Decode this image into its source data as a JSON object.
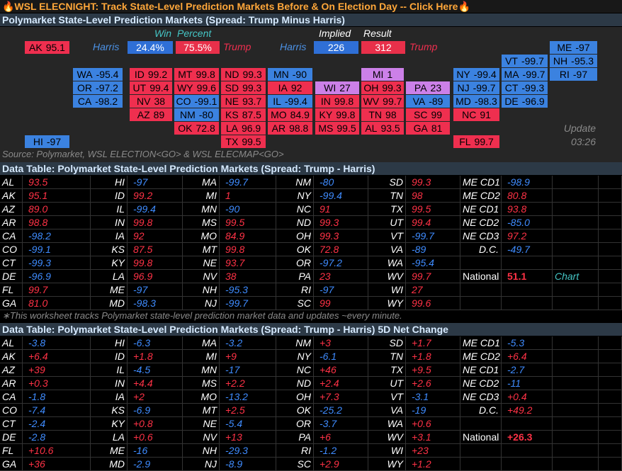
{
  "banner": "🔥WSL ELECNIGHT: Track State-Level Prediction Markets Before & On Election Day -- Click Here🔥",
  "map": {
    "title": "Polymarket State-Level Prediction Markets (Spread: Trump Minus Harris)",
    "win_percent": {
      "heading": [
        "Win",
        "Percent"
      ],
      "harris_label": "Harris",
      "harris": "24.4%",
      "trump": "75.5%",
      "trump_label": "Trump"
    },
    "implied_result": {
      "heading": [
        "Implied",
        "Result"
      ],
      "harris_label": "Harris",
      "harris": "226",
      "trump": "312",
      "trump_label": "Trump"
    },
    "tiles": [
      {
        "state": "AK",
        "value": "95.1"
      },
      {
        "state": "ME",
        "value": "-97"
      },
      {
        "state": "VT",
        "value": "-99.7"
      },
      {
        "state": "NH",
        "value": "-95.3"
      },
      {
        "state": "WA",
        "value": "-95.4"
      },
      {
        "state": "ID",
        "value": "99.2"
      },
      {
        "state": "MT",
        "value": "99.8"
      },
      {
        "state": "ND",
        "value": "99.3"
      },
      {
        "state": "MN",
        "value": "-90"
      },
      {
        "state": "MI",
        "value": "1"
      },
      {
        "state": "NY",
        "value": "-99.4"
      },
      {
        "state": "MA",
        "value": "-99.7"
      },
      {
        "state": "RI",
        "value": "-97"
      },
      {
        "state": "OR",
        "value": "-97.2"
      },
      {
        "state": "UT",
        "value": "99.4"
      },
      {
        "state": "WY",
        "value": "99.6"
      },
      {
        "state": "SD",
        "value": "99.3"
      },
      {
        "state": "IA",
        "value": "92"
      },
      {
        "state": "WI",
        "value": "27"
      },
      {
        "state": "OH",
        "value": "99.3"
      },
      {
        "state": "PA",
        "value": "23"
      },
      {
        "state": "NJ",
        "value": "-99.7"
      },
      {
        "state": "CT",
        "value": "-99.3"
      },
      {
        "state": "CA",
        "value": "-98.2"
      },
      {
        "state": "NV",
        "value": "38"
      },
      {
        "state": "CO",
        "value": "-99.1"
      },
      {
        "state": "NE",
        "value": "93.7"
      },
      {
        "state": "IL",
        "value": "-99.4"
      },
      {
        "state": "IN",
        "value": "99.8"
      },
      {
        "state": "WV",
        "value": "99.7"
      },
      {
        "state": "VA",
        "value": "-89"
      },
      {
        "state": "MD",
        "value": "-98.3"
      },
      {
        "state": "DE",
        "value": "-96.9"
      },
      {
        "state": "AZ",
        "value": "89"
      },
      {
        "state": "NM",
        "value": "-80"
      },
      {
        "state": "KS",
        "value": "87.5"
      },
      {
        "state": "MO",
        "value": "84.9"
      },
      {
        "state": "KY",
        "value": "99.8"
      },
      {
        "state": "TN",
        "value": "98"
      },
      {
        "state": "SC",
        "value": "99"
      },
      {
        "state": "NC",
        "value": "91"
      },
      {
        "state": "OK",
        "value": "72.8"
      },
      {
        "state": "LA",
        "value": "96.9"
      },
      {
        "state": "AR",
        "value": "98.8"
      },
      {
        "state": "MS",
        "value": "99.5"
      },
      {
        "state": "AL",
        "value": "93.5"
      },
      {
        "state": "GA",
        "value": "81"
      },
      {
        "state": "HI",
        "value": "-97"
      },
      {
        "state": "TX",
        "value": "99.5"
      },
      {
        "state": "FL",
        "value": "99.7"
      }
    ],
    "update": [
      "Update",
      "03:26"
    ],
    "source": "Source: Polymarket, WSL ELECTION<GO> & WSL ELECMAP<GO>"
  },
  "table_1": {
    "title": "Data Table: Polymarket State-Level Prediction Markets (Spread: Trump - Harris)",
    "columns": [
      [
        [
          "AL",
          "93.5"
        ],
        [
          "AK",
          "95.1"
        ],
        [
          "AZ",
          "89.0"
        ],
        [
          "AR",
          "98.8"
        ],
        [
          "CA",
          "-98.2"
        ],
        [
          "CO",
          "-99.1"
        ],
        [
          "CT",
          "-99.3"
        ],
        [
          "DE",
          "-96.9"
        ],
        [
          "FL",
          "99.7"
        ],
        [
          "GA",
          "81.0"
        ]
      ],
      [
        [
          "HI",
          "-97"
        ],
        [
          "ID",
          "99.2"
        ],
        [
          "IL",
          "-99.4"
        ],
        [
          "IN",
          "99.8"
        ],
        [
          "IA",
          "92"
        ],
        [
          "KS",
          "87.5"
        ],
        [
          "KY",
          "99.8"
        ],
        [
          "LA",
          "96.9"
        ],
        [
          "ME",
          "-97"
        ],
        [
          "MD",
          "-98.3"
        ]
      ],
      [
        [
          "MA",
          "-99.7"
        ],
        [
          "MI",
          "1"
        ],
        [
          "MN",
          "-90"
        ],
        [
          "MS",
          "99.5"
        ],
        [
          "MO",
          "84.9"
        ],
        [
          "MT",
          "99.8"
        ],
        [
          "NE",
          "93.7"
        ],
        [
          "NV",
          "38"
        ],
        [
          "NH",
          "-95.3"
        ],
        [
          "NJ",
          "-99.7"
        ]
      ],
      [
        [
          "NM",
          "-80"
        ],
        [
          "NY",
          "-99.4"
        ],
        [
          "NC",
          "91"
        ],
        [
          "ND",
          "99.3"
        ],
        [
          "OH",
          "99.3"
        ],
        [
          "OK",
          "72.8"
        ],
        [
          "OR",
          "-97.2"
        ],
        [
          "PA",
          "23"
        ],
        [
          "RI",
          "-97"
        ],
        [
          "SC",
          "99"
        ]
      ],
      [
        [
          "SD",
          "99.3"
        ],
        [
          "TN",
          "98"
        ],
        [
          "TX",
          "99.5"
        ],
        [
          "UT",
          "99.4"
        ],
        [
          "VT",
          "-99.7"
        ],
        [
          "VA",
          "-89"
        ],
        [
          "WA",
          "-95.4"
        ],
        [
          "WV",
          "99.7"
        ],
        [
          "WI",
          "27"
        ],
        [
          "WY",
          "99.6"
        ]
      ],
      [
        [
          "ME CD1",
          "-98.9"
        ],
        [
          "ME CD2",
          "80.8"
        ],
        [
          "NE CD1",
          "93.8"
        ],
        [
          "NE CD2",
          "-85.0"
        ],
        [
          "NE CD3",
          "97.2"
        ],
        [
          "D.C.",
          "-49.7"
        ],
        null,
        [
          "National",
          "51.1",
          "Chart"
        ],
        null,
        null
      ]
    ]
  },
  "footnote": "∗This worksheet tracks Polymarket state-level prediction market data and updates ~every minute.",
  "table_2": {
    "title": "Data Table: Polymarket State-Level Prediction Markets (Spread: Trump - Harris) 5D Net Change",
    "columns": [
      [
        [
          "AL",
          "-3.8"
        ],
        [
          "AK",
          "+6.4"
        ],
        [
          "AZ",
          "+39"
        ],
        [
          "AR",
          "+0.3"
        ],
        [
          "CA",
          "-1.8"
        ],
        [
          "CO",
          "-7.4"
        ],
        [
          "CT",
          "-2.4"
        ],
        [
          "DE",
          "-2.8"
        ],
        [
          "FL",
          "+10.6"
        ],
        [
          "GA",
          "+36"
        ]
      ],
      [
        [
          "HI",
          "-6.3"
        ],
        [
          "ID",
          "+1.8"
        ],
        [
          "IL",
          "-4.5"
        ],
        [
          "IN",
          "+4.4"
        ],
        [
          "IA",
          "+2"
        ],
        [
          "KS",
          "-6.9"
        ],
        [
          "KY",
          "+0.8"
        ],
        [
          "LA",
          "+0.6"
        ],
        [
          "ME",
          "-16"
        ],
        [
          "MD",
          "-2.9"
        ]
      ],
      [
        [
          "MA",
          "-3.2"
        ],
        [
          "MI",
          "+9"
        ],
        [
          "MN",
          "-17"
        ],
        [
          "MS",
          "+2.2"
        ],
        [
          "MO",
          "-13.2"
        ],
        [
          "MT",
          "+2.5"
        ],
        [
          "NE",
          "-5.4"
        ],
        [
          "NV",
          "+13"
        ],
        [
          "NH",
          "-29.3"
        ],
        [
          "NJ",
          "-8.9"
        ]
      ],
      [
        [
          "NM",
          "+3"
        ],
        [
          "NY",
          "-6.1"
        ],
        [
          "NC",
          "+46"
        ],
        [
          "ND",
          "+2.4"
        ],
        [
          "OH",
          "+7.3"
        ],
        [
          "OK",
          "-25.2"
        ],
        [
          "OR",
          "-3.7"
        ],
        [
          "PA",
          "+6"
        ],
        [
          "RI",
          "-1.2"
        ],
        [
          "SC",
          "+2.9"
        ]
      ],
      [
        [
          "SD",
          "+1.7"
        ],
        [
          "TN",
          "+1.8"
        ],
        [
          "TX",
          "+9.5"
        ],
        [
          "UT",
          "+2.6"
        ],
        [
          "VT",
          "-3.1"
        ],
        [
          "VA",
          "-19"
        ],
        [
          "WA",
          "+0.6"
        ],
        [
          "WV",
          "+3.1"
        ],
        [
          "WI",
          "+23"
        ],
        [
          "WY",
          "+1.2"
        ]
      ],
      [
        [
          "ME CD1",
          "-5.3"
        ],
        [
          "ME CD2",
          "+6.4"
        ],
        [
          "NE CD1",
          "-2.7"
        ],
        [
          "NE CD2",
          "-11"
        ],
        [
          "NE CD3",
          "+0.4"
        ],
        [
          "D.C.",
          "+49.2"
        ],
        null,
        [
          "National",
          "+26.3"
        ],
        null,
        null
      ]
    ]
  }
}
